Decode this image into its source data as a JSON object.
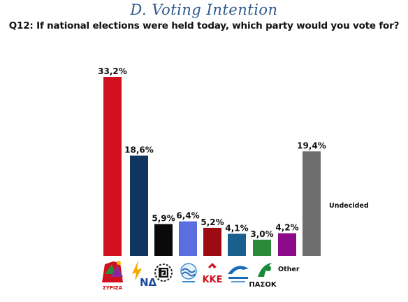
{
  "header": {
    "section_title": "D. Voting Intention",
    "question": "Q12: If national elections were held today, which party would you vote for?"
  },
  "chart_data": {
    "type": "bar",
    "ylim": [
      0,
      35
    ],
    "grid": false,
    "categories": [
      "ΣΥΡΙΖΑ",
      "ΝΔ",
      "",
      "",
      "ΚΚΕ",
      "",
      "ΠΑΣΟΚ",
      "Other",
      "Undecided"
    ],
    "values": [
      33.2,
      18.6,
      5.9,
      6.4,
      5.2,
      4.1,
      3.0,
      4.2,
      19.4
    ],
    "value_labels": [
      "33,2%",
      "18,6%",
      "5,9%",
      "6,4%",
      "5,2%",
      "4,1%",
      "3,0%",
      "4,2%",
      "19,4%"
    ],
    "colors": [
      "#d0101f",
      "#10355e",
      "#0a0a0a",
      "#5a6ee0",
      "#9e0a14",
      "#1a5f8e",
      "#2a8a3a",
      "#8a0a8a",
      "#6e6e6e"
    ],
    "logo_icons": [
      "syriza-logo-icon",
      "nd-logo-icon",
      "golden-dawn-logo-icon",
      "to-potami-logo-icon",
      "kke-logo-icon",
      "anexartitoi-ellines-logo-icon",
      "pasok-logo-icon"
    ]
  }
}
